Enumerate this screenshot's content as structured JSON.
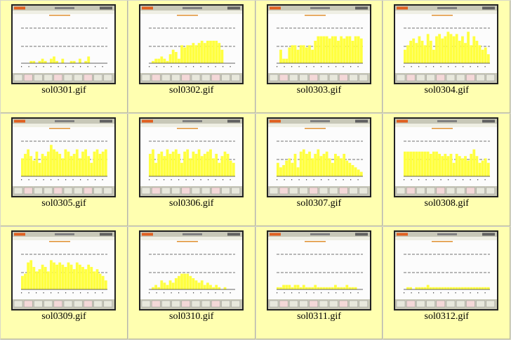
{
  "gallery": {
    "items": [
      {
        "filename": "sol0301.gif",
        "accent": "#ffff40",
        "values": [
          0,
          0,
          0,
          0.05,
          0.05,
          0,
          0.05,
          0.1,
          0.05,
          0,
          0.1,
          0.15,
          0.05,
          0,
          0.1,
          0,
          0,
          0.05,
          0.05,
          0,
          0.1,
          0,
          0.05,
          0.15,
          0,
          0,
          0,
          0,
          0,
          0
        ]
      },
      {
        "filename": "sol0302.gif",
        "accent": "#ffff40",
        "values": [
          0,
          0.05,
          0.1,
          0.1,
          0.15,
          0.1,
          0.05,
          0.2,
          0.3,
          0.25,
          0.1,
          0.4,
          0.35,
          0.4,
          0.4,
          0.45,
          0.4,
          0.45,
          0.5,
          0.45,
          0.5,
          0.5,
          0.5,
          0.5,
          0.45,
          0.3,
          0,
          0,
          0,
          0
        ]
      },
      {
        "filename": "sol0303.gif",
        "accent": "#ffff40",
        "values": [
          0,
          0.3,
          0.1,
          0.1,
          0.35,
          0.4,
          0.4,
          0.3,
          0.4,
          0.4,
          0.35,
          0.4,
          0.3,
          0.5,
          0.6,
          0.6,
          0.6,
          0.6,
          0.55,
          0.6,
          0.6,
          0.5,
          0.6,
          0.55,
          0.6,
          0.6,
          0.5,
          0.6,
          0.6,
          0.55
        ]
      },
      {
        "filename": "sol0304.gif",
        "accent": "#ffff40",
        "values": [
          0.3,
          0.4,
          0.5,
          0.55,
          0.45,
          0.6,
          0.5,
          0.4,
          0.65,
          0.5,
          0.3,
          0.6,
          0.65,
          0.55,
          0.6,
          0.7,
          0.65,
          0.6,
          0.65,
          0.5,
          0.6,
          0.45,
          0.7,
          0.4,
          0.6,
          0.5,
          0.4,
          0.3,
          0.35,
          0.2
        ]
      },
      {
        "filename": "sol0305.gif",
        "accent": "#ffff40",
        "values": [
          0.4,
          0.5,
          0.6,
          0.45,
          0.35,
          0.55,
          0.3,
          0.5,
          0.45,
          0.55,
          0.7,
          0.6,
          0.55,
          0.5,
          0.4,
          0.6,
          0.55,
          0.45,
          0.5,
          0.6,
          0.4,
          0.55,
          0.6,
          0.45,
          0.3,
          0.55,
          0.6,
          0.5,
          0.55,
          0.6
        ]
      },
      {
        "filename": "sol0306.gif",
        "accent": "#ffff40",
        "values": [
          0.5,
          0.6,
          0.3,
          0.5,
          0.55,
          0.45,
          0.6,
          0.5,
          0.55,
          0.6,
          0.5,
          0.3,
          0.55,
          0.6,
          0.4,
          0.55,
          0.5,
          0.6,
          0.45,
          0.5,
          0.55,
          0.6,
          0.4,
          0.5,
          0.3,
          0.45,
          0.55,
          0.5,
          0.35,
          0.3
        ]
      },
      {
        "filename": "sol0307.gif",
        "accent": "#ffff40",
        "values": [
          0.3,
          0.2,
          0.25,
          0.35,
          0.4,
          0.3,
          0.5,
          0.2,
          0.55,
          0.6,
          0.5,
          0.55,
          0.4,
          0.5,
          0.6,
          0.45,
          0.5,
          0.55,
          0.4,
          0.3,
          0.5,
          0.45,
          0.4,
          0.5,
          0.35,
          0.3,
          0.25,
          0.2,
          0.15,
          0.1
        ]
      },
      {
        "filename": "sol0308.gif",
        "accent": "#ffff40",
        "values": [
          0.55,
          0.55,
          0.55,
          0.55,
          0.55,
          0.55,
          0.55,
          0.55,
          0.55,
          0.5,
          0.55,
          0.55,
          0.5,
          0.45,
          0.5,
          0.45,
          0.5,
          0.3,
          0.5,
          0.45,
          0.4,
          0.45,
          0.35,
          0.5,
          0.6,
          0.45,
          0.3,
          0.35,
          0.4,
          0.3
        ]
      },
      {
        "filename": "sol0309.gif",
        "accent": "#ffff40",
        "values": [
          0.3,
          0.35,
          0.6,
          0.65,
          0.5,
          0.4,
          0.45,
          0.55,
          0.5,
          0.4,
          0.65,
          0.6,
          0.55,
          0.6,
          0.55,
          0.5,
          0.6,
          0.55,
          0.45,
          0.6,
          0.55,
          0.5,
          0.45,
          0.55,
          0.5,
          0.4,
          0.45,
          0.35,
          0.3,
          0.2
        ]
      },
      {
        "filename": "sol0310.gif",
        "accent": "#ffff40",
        "values": [
          0,
          0.05,
          0.1,
          0.05,
          0.2,
          0.15,
          0.1,
          0.2,
          0.15,
          0.25,
          0.3,
          0.35,
          0.35,
          0.35,
          0.3,
          0.25,
          0.2,
          0.15,
          0.2,
          0.1,
          0.15,
          0.1,
          0.05,
          0.1,
          0.05,
          0,
          0.05,
          0,
          0,
          0
        ]
      },
      {
        "filename": "sol0311.gif",
        "accent": "#ffff40",
        "values": [
          0.05,
          0.05,
          0.1,
          0.1,
          0.1,
          0.05,
          0.1,
          0.1,
          0.05,
          0.1,
          0.05,
          0.05,
          0.05,
          0.1,
          0.05,
          0.05,
          0.05,
          0.05,
          0.05,
          0.05,
          0.1,
          0.05,
          0.05,
          0.05,
          0.1,
          0.05,
          0.05,
          0.05,
          0,
          0
        ]
      },
      {
        "filename": "sol0312.gif",
        "accent": "#ffff40",
        "values": [
          0,
          0.05,
          0.05,
          0,
          0.05,
          0.05,
          0.05,
          0.05,
          0.1,
          0.05,
          0.05,
          0.05,
          0.05,
          0.05,
          0.05,
          0.05,
          0.05,
          0.05,
          0.05,
          0.05,
          0.05,
          0.05,
          0.05,
          0.05,
          0.05,
          0.05,
          0.05,
          0.05,
          0.05,
          0.05
        ]
      }
    ]
  }
}
